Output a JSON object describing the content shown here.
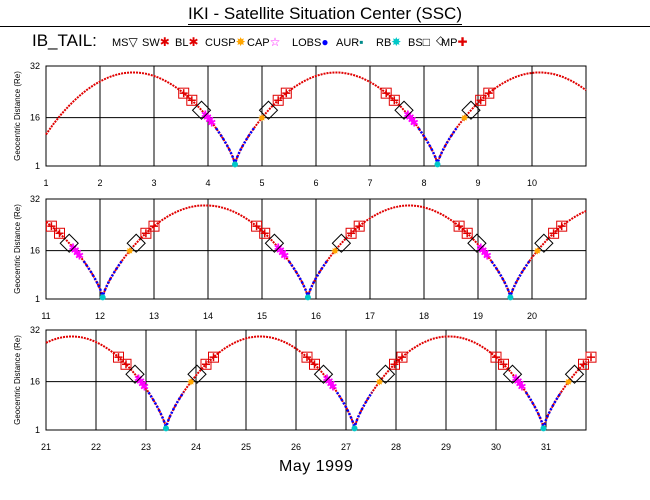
{
  "header": {
    "title": "IKI - Satellite Situation Center (SSC)",
    "satellite": "IB_TAIL:",
    "legend": [
      {
        "label": "MS",
        "symbol": "▽",
        "color": "#000000"
      },
      {
        "label": "SW",
        "symbol": "✱",
        "color": "#e00000"
      },
      {
        "label": "BL",
        "symbol": "✱",
        "color": "#e00000"
      },
      {
        "label": "CUSP",
        "symbol": "✸",
        "color": "#ffa500"
      },
      {
        "label": "CAP",
        "symbol": "☆",
        "color": "#ff00ff"
      },
      {
        "label": "LOBS",
        "symbol": "●",
        "color": "#0000ff"
      },
      {
        "label": "AUR",
        "symbol": "▪",
        "color": "#008b8b"
      },
      {
        "label": "RB",
        "symbol": "✸",
        "color": "#00c8c8"
      },
      {
        "label": "BS",
        "symbol": "□",
        "color": "#000000"
      },
      {
        "label": "MP",
        "symbol": "✚",
        "color": "#e00000"
      },
      {
        "label": "",
        "symbol": "◇",
        "color": "#000000"
      }
    ]
  },
  "footer": {
    "month_label": "May    1999"
  },
  "chart_data": [
    {
      "type": "line",
      "panel": 1,
      "ylabel": "Geocentric Distance (Re)",
      "y_ticks": [
        "1",
        "16",
        "32"
      ],
      "ylim": [
        1,
        32
      ],
      "xlim": [
        1,
        11
      ],
      "x_ticks": [
        "1",
        "2",
        "3",
        "4",
        "5",
        "6",
        "7",
        "8",
        "9",
        "10"
      ],
      "grid": true,
      "perigees": [
        4.5,
        8.25
      ],
      "apogees": [
        2.6,
        6.4,
        10.15
      ],
      "apogee_value": 30,
      "perigee_value": 1.5,
      "period_days": 3.77
    },
    {
      "type": "line",
      "panel": 2,
      "ylabel": "Geocentric Distance (Re)",
      "y_ticks": [
        "1",
        "16",
        "32"
      ],
      "ylim": [
        1,
        32
      ],
      "xlim": [
        11,
        21
      ],
      "x_ticks": [
        "11",
        "12",
        "13",
        "14",
        "15",
        "16",
        "17",
        "18",
        "19",
        "20"
      ],
      "grid": true,
      "perigees": [
        12.05,
        15.85,
        19.6
      ],
      "apogees": [
        14.0,
        17.75
      ],
      "apogee_value": 30,
      "perigee_value": 1.5,
      "period_days": 3.77
    },
    {
      "type": "line",
      "panel": 3,
      "ylabel": "Geocentric Distance (Re)",
      "y_ticks": [
        "1",
        "16",
        "32"
      ],
      "ylim": [
        1,
        32
      ],
      "xlim": [
        21,
        31.8
      ],
      "x_ticks": [
        "21",
        "22",
        "23",
        "24",
        "25",
        "26",
        "27",
        "28",
        "29",
        "30",
        "31"
      ],
      "grid": true,
      "perigees": [
        23.4,
        27.17,
        30.95
      ],
      "apogees": [
        21.55,
        25.3,
        29.05
      ],
      "apogee_value": 30,
      "perigee_value": 1.5,
      "period_days": 3.77
    }
  ],
  "colors": {
    "orbit": "#e00000",
    "lobes": "#0000ff",
    "cap": "#ff00ff",
    "aur": "#00c8c8",
    "cusp": "#ffa500"
  }
}
